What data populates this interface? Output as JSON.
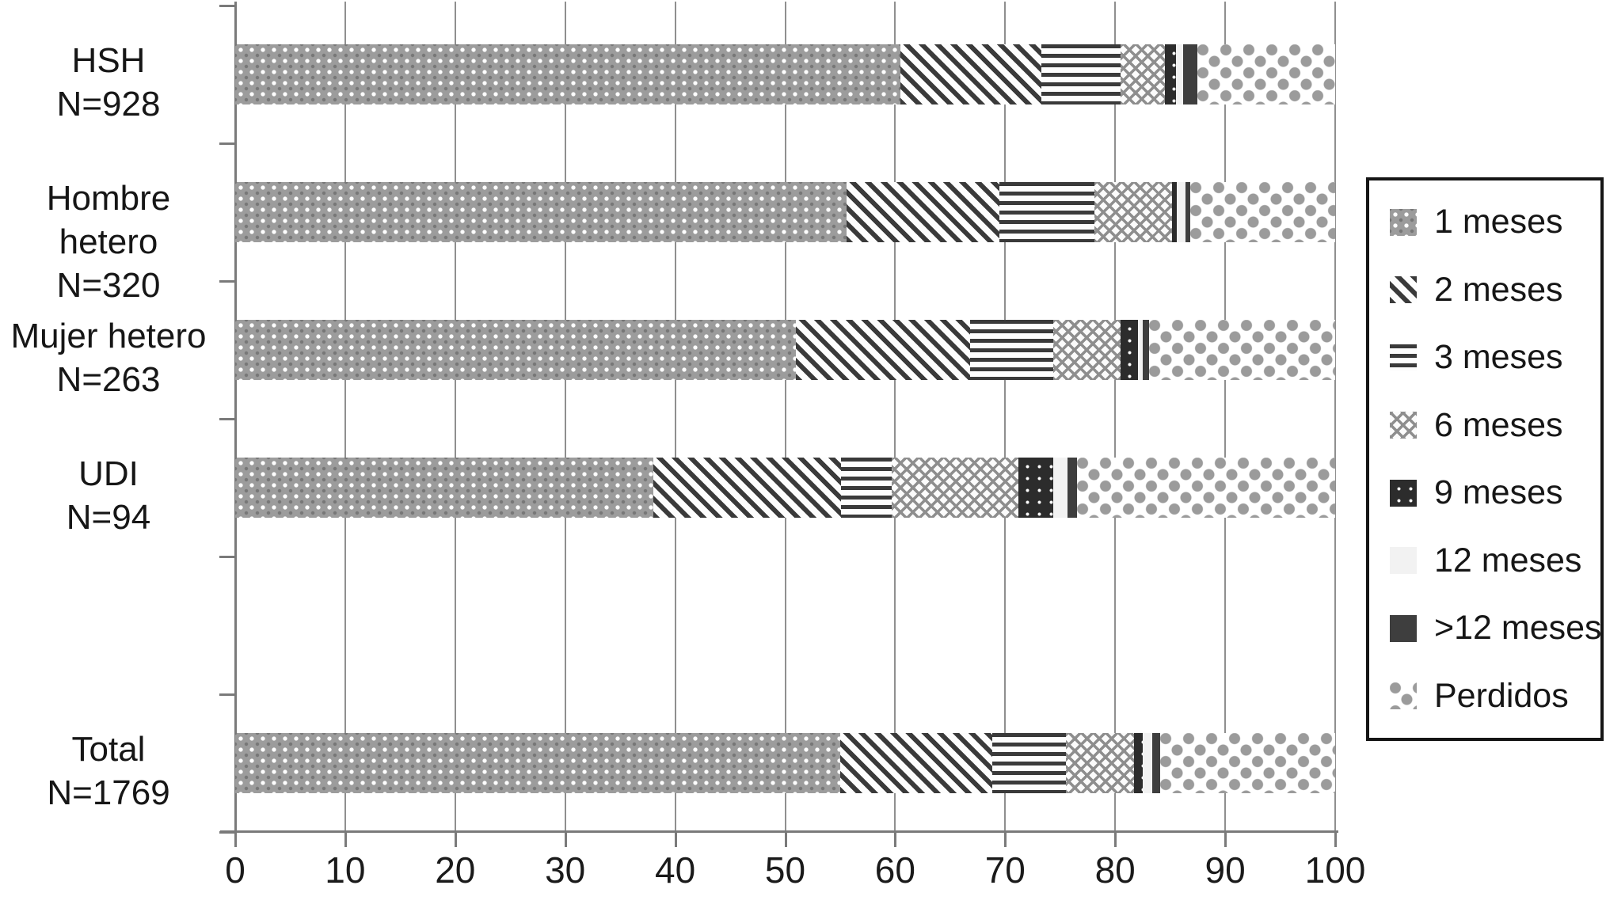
{
  "chart_data": {
    "type": "bar",
    "orientation": "horizontal",
    "stacked": true,
    "x_unit": "percent",
    "xlim": [
      0,
      100
    ],
    "grid": true,
    "legend_position": "right",
    "xticks": [
      "0",
      "10",
      "20",
      "30",
      "40",
      "50",
      "60",
      "70",
      "80",
      "90",
      "100"
    ],
    "series_names": [
      "1 meses",
      "2 meses",
      "3 meses",
      "6 meses",
      "9 meses",
      "12 meses",
      ">12 meses",
      "Perdidos"
    ],
    "rows": [
      {
        "label": "HSH",
        "n": "N=928",
        "values": [
          60.5,
          12.8,
          7.2,
          4.0,
          1.0,
          0.7,
          1.3,
          12.5
        ]
      },
      {
        "label": "Hombre hetero",
        "n": "N=320",
        "values": [
          55.6,
          13.9,
          8.6,
          7.1,
          0.4,
          0.8,
          0.4,
          13.2
        ]
      },
      {
        "label": "Mujer hetero",
        "n": "N=263",
        "values": [
          51.0,
          15.8,
          7.6,
          6.1,
          1.6,
          0.4,
          0.6,
          16.9
        ]
      },
      {
        "label": "UDI",
        "n": "N=94",
        "values": [
          38.0,
          17.1,
          4.6,
          11.5,
          3.2,
          1.3,
          0.8,
          23.5
        ]
      },
      {
        "label": "",
        "n": "",
        "values": []
      },
      {
        "label": "Total",
        "n": "N=1769",
        "values": [
          55.0,
          13.8,
          6.7,
          6.2,
          0.8,
          0.9,
          0.7,
          15.9
        ]
      }
    ]
  },
  "legend": {
    "items": [
      {
        "label": "1 meses",
        "pattern": "p-1m"
      },
      {
        "label": "2 meses",
        "pattern": "p-2m"
      },
      {
        "label": "3 meses",
        "pattern": "p-3m"
      },
      {
        "label": "6 meses",
        "pattern": "p-6m"
      },
      {
        "label": "9 meses",
        "pattern": "p-9m"
      },
      {
        "label": "12 meses",
        "pattern": "p-12m"
      },
      {
        "label": ">12 meses",
        "pattern": "p-g12m"
      },
      {
        "label": "Perdidos",
        "pattern": "p-perd"
      }
    ]
  },
  "colors": {
    "axis": "#7a7a7a",
    "gridline": "#8f8f8f",
    "text": "#1a1a1a",
    "stripe_dark": "#3a3a3a",
    "solid_dark": "#3e3e3e",
    "weave_gray": "#9c9c9c",
    "dot_gray": "#9b9b9b",
    "near_white": "#f2f2f2"
  }
}
